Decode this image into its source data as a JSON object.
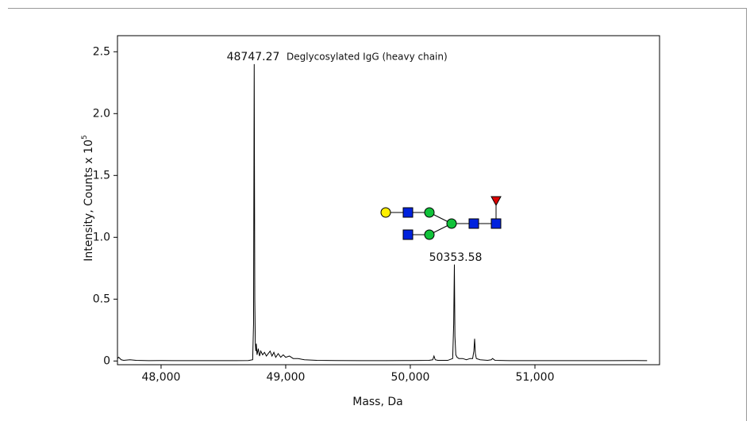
{
  "chart_data": {
    "type": "line",
    "x_label": "Mass, Da",
    "y_label": "Intensity, Counts x 10",
    "y_label_exponent": "5",
    "annotations": [
      "48747.27",
      "Deglycosylated IgG (heavy chain)",
      "50353.58"
    ],
    "xlim": [
      47650,
      52000
    ],
    "ylim": [
      -0.03,
      2.63
    ],
    "xticks": [
      {
        "value": 48000,
        "label": "48,000"
      },
      {
        "value": 49000,
        "label": "49,000"
      },
      {
        "value": 50000,
        "label": "50,000"
      },
      {
        "value": 51000,
        "label": "51,000"
      }
    ],
    "yticks": [
      0,
      0.5,
      {
        "value": 1.0,
        "label": "1.0"
      },
      1.5,
      {
        "value": 2.0,
        "label": "2.0"
      },
      2.5
    ],
    "series": [
      {
        "color": "#000000",
        "x": [
          47650,
          47660,
          47680,
          47700,
          47750,
          47800,
          47900,
          48000,
          48100,
          48200,
          48300,
          48400,
          48500,
          48600,
          48700,
          48735,
          48742,
          48747.27,
          48752,
          48756,
          48760,
          48764,
          48770,
          48780,
          48790,
          48800,
          48815,
          48830,
          48845,
          48860,
          48875,
          48890,
          48905,
          48920,
          48940,
          48960,
          48980,
          49000,
          49030,
          49060,
          49100,
          49150,
          49250,
          49400,
          49600,
          49800,
          50000,
          50150,
          50180,
          50190,
          50200,
          50220,
          50300,
          50340,
          50348,
          50353.58,
          50358,
          50365,
          50375,
          50390,
          50420,
          50450,
          50480,
          50500,
          50510,
          50516,
          50522,
          50530,
          50560,
          50620,
          50650,
          50660,
          50680,
          50800,
          51000,
          51200,
          51400,
          51600,
          51800,
          51900
        ],
        "values": [
          0.02,
          0.03,
          0.01,
          0.005,
          0.01,
          0.005,
          0.003,
          0.004,
          0.003,
          0.003,
          0.003,
          0.003,
          0.003,
          0.003,
          0.004,
          0.01,
          0.3,
          2.4,
          0.5,
          0.15,
          0.08,
          0.14,
          0.05,
          0.1,
          0.04,
          0.08,
          0.05,
          0.07,
          0.04,
          0.06,
          0.08,
          0.04,
          0.07,
          0.03,
          0.06,
          0.03,
          0.05,
          0.03,
          0.04,
          0.02,
          0.02,
          0.01,
          0.005,
          0.004,
          0.003,
          0.003,
          0.004,
          0.005,
          0.01,
          0.04,
          0.01,
          0.005,
          0.005,
          0.02,
          0.3,
          0.78,
          0.2,
          0.05,
          0.03,
          0.02,
          0.02,
          0.01,
          0.02,
          0.02,
          0.08,
          0.18,
          0.06,
          0.02,
          0.01,
          0.005,
          0.01,
          0.02,
          0.005,
          0.003,
          0.003,
          0.003,
          0.003,
          0.003,
          0.004,
          0.003
        ]
      }
    ]
  }
}
